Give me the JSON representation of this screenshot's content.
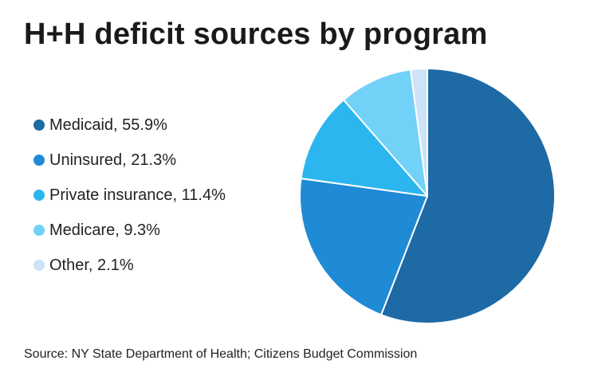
{
  "chart_data": {
    "type": "pie",
    "title": "H+H deficit sources by program",
    "categories": [
      "Medicaid",
      "Uninsured",
      "Private insurance",
      "Medicare",
      "Other"
    ],
    "values": [
      55.9,
      21.3,
      11.4,
      9.3,
      2.1
    ],
    "unit": "%",
    "colors": [
      "#1d6aa5",
      "#1f8ad5",
      "#2bb6ef",
      "#72d1f7",
      "#cde3f7"
    ],
    "legend_labels": [
      "Medicaid, 55.9%",
      "Uninsured, 21.3%",
      "Private insurance, 11.4%",
      "Medicare, 9.3%",
      "Other, 2.1%"
    ],
    "legend_position": "left",
    "source": "Source: NY State Department of Health; Citizens Budget Commission"
  }
}
